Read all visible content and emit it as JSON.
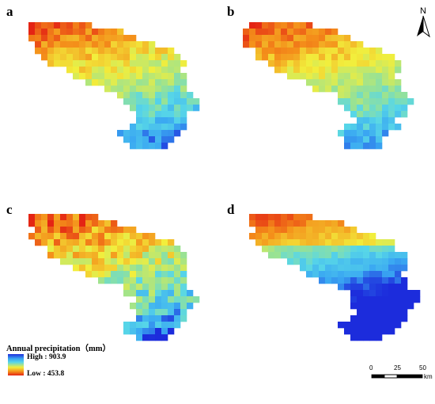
{
  "panels": [
    {
      "label": "a",
      "scheme": "a"
    },
    {
      "label": "b",
      "scheme": "b"
    },
    {
      "label": "c",
      "scheme": "c"
    },
    {
      "label": "d",
      "scheme": "d"
    }
  ],
  "legend": {
    "title": "Annual precipitation（mm）",
    "high": "High : 903.9",
    "low": "Low : 453.8",
    "high_value": 903.9,
    "low_value": 453.8
  },
  "north_arrow": {
    "label": "N"
  },
  "scale_bar": {
    "ticks": [
      "0",
      "25",
      "50"
    ],
    "unit": "km"
  },
  "colors": {
    "high": "#1c2cdc",
    "mid_high": "#57d6e8",
    "mid": "#f2ee3c",
    "mid_low": "#f48f1a",
    "low": "#e42414"
  }
}
